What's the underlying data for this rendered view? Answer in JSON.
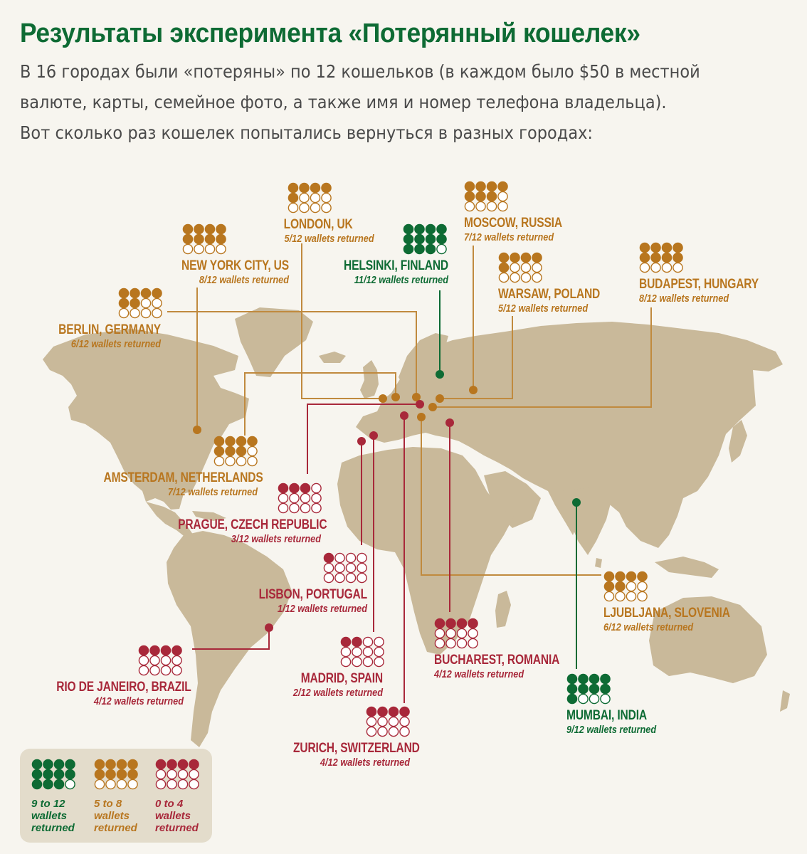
{
  "title": "Результаты эксперимента «Потерянный кошелек»",
  "subtitle_lines": [
    "В 16 городах были «потеряны» по 12 кошельков (в каждом было $50 в местной",
    "валюте, карты, семейное фото, а также имя и номер телефона владельца).",
    "Вот сколько раз кошелек попытались вернуться в разных городах:"
  ],
  "colors": {
    "green": "#0e6b34",
    "orange": "#b8761f",
    "red": "#a8283a",
    "land": "#c9b99a",
    "line_orange": "#c08a3e"
  },
  "wallets_total": 12,
  "cities": [
    {
      "id": "london",
      "name": "LONDON, UK",
      "returned_text": "5/12 wallets returned",
      "returned": 5,
      "category": "orange"
    },
    {
      "id": "moscow",
      "name": "MOSCOW, RUSSIA",
      "returned_text": "7/12 wallets returned",
      "returned": 7,
      "category": "orange"
    },
    {
      "id": "helsinki",
      "name": "HELSINKI, FINLAND",
      "returned_text": "11/12 wallets returned",
      "returned": 11,
      "category": "green"
    },
    {
      "id": "newyork",
      "name": "NEW YORK CITY, US",
      "returned_text": "8/12 wallets returned",
      "returned": 8,
      "category": "orange"
    },
    {
      "id": "warsaw",
      "name": "WARSAW, POLAND",
      "returned_text": "5/12 wallets returned",
      "returned": 5,
      "category": "orange"
    },
    {
      "id": "budapest",
      "name": "BUDAPEST, HUNGARY",
      "returned_text": "8/12 wallets returned",
      "returned": 8,
      "category": "orange"
    },
    {
      "id": "berlin",
      "name": "BERLIN, GERMANY",
      "returned_text": "6/12 wallets returned",
      "returned": 6,
      "category": "orange"
    },
    {
      "id": "amsterdam",
      "name": "AMSTERDAM, NETHERLANDS",
      "returned_text": "7/12 wallets returned",
      "returned": 7,
      "category": "orange"
    },
    {
      "id": "prague",
      "name": "PRAGUE, CZECH REPUBLIC",
      "returned_text": "3/12 wallets returned",
      "returned": 3,
      "category": "red"
    },
    {
      "id": "lisbon",
      "name": "LISBON, PORTUGAL",
      "returned_text": "1/12 wallets returned",
      "returned": 1,
      "category": "red"
    },
    {
      "id": "rio",
      "name": "RIO DE JANEIRO, BRAZIL",
      "returned_text": "4/12 wallets returned",
      "returned": 4,
      "category": "red"
    },
    {
      "id": "madrid",
      "name": "MADRID, SPAIN",
      "returned_text": "2/12 wallets returned",
      "returned": 2,
      "category": "red"
    },
    {
      "id": "zurich",
      "name": "ZURICH, SWITZERLAND",
      "returned_text": "4/12 wallets returned",
      "returned": 4,
      "category": "red"
    },
    {
      "id": "bucharest",
      "name": "BUCHAREST, ROMANIA",
      "returned_text": "4/12 wallets returned",
      "returned": 4,
      "category": "red"
    },
    {
      "id": "ljubljana",
      "name": "LJUBLJANA, SLOVENIA",
      "returned_text": "6/12 wallets returned",
      "returned": 6,
      "category": "orange"
    },
    {
      "id": "mumbai",
      "name": "MUMBAI, INDIA",
      "returned_text": "9/12 wallets returned",
      "returned": 9,
      "category": "green"
    }
  ],
  "legend": [
    {
      "id": "green",
      "label_lines": [
        "9 to 12",
        "wallets",
        "returned"
      ],
      "category": "green",
      "filled": 11
    },
    {
      "id": "orange",
      "label_lines": [
        "5 to 8",
        "wallets",
        "returned"
      ],
      "category": "orange",
      "filled": 8
    },
    {
      "id": "red",
      "label_lines": [
        "0 to 4",
        "wallets",
        "returned"
      ],
      "category": "red",
      "filled": 4
    }
  ]
}
